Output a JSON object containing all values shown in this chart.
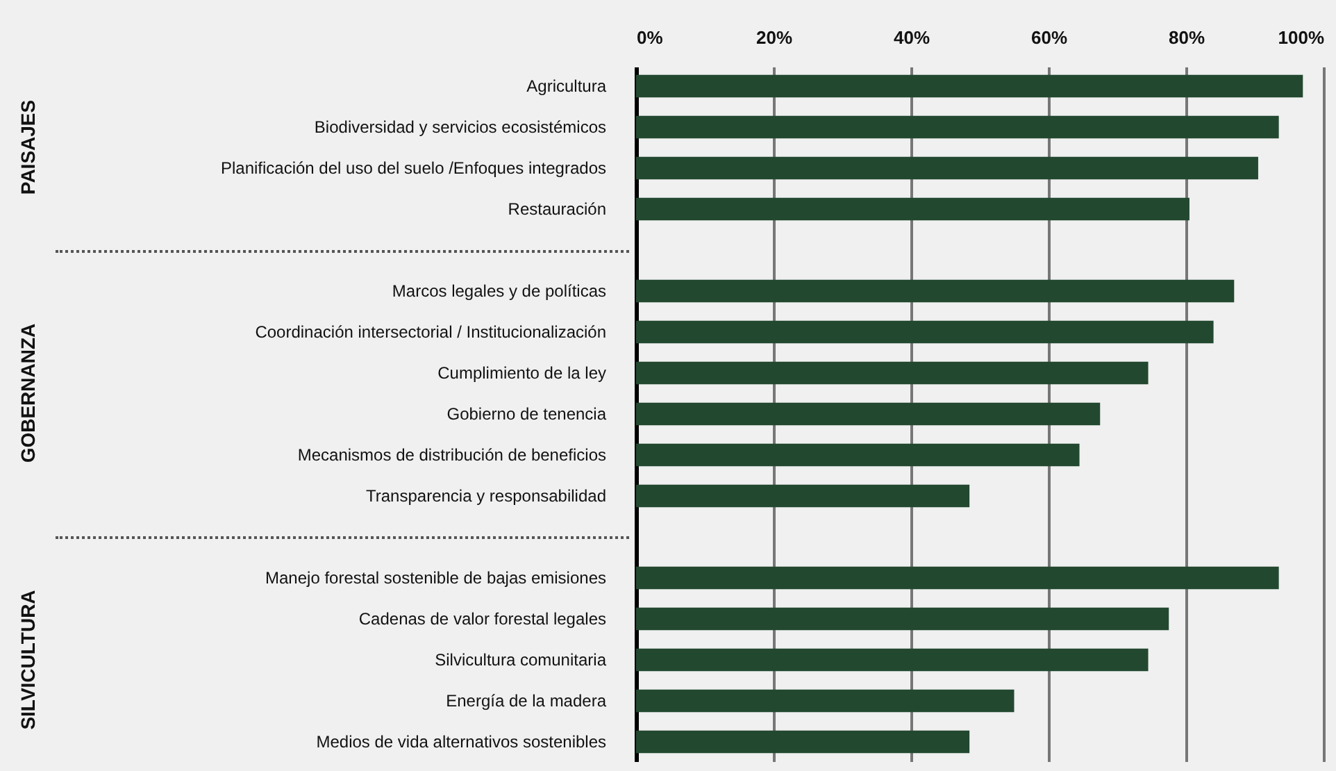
{
  "chart_data": {
    "type": "bar",
    "orientation": "horizontal",
    "categories": [
      "Agricultura",
      "Biodiversidad y servicios ecosistémicos",
      "Planificación del uso del suelo /Enfoques integrados",
      "Restauración",
      null,
      "Marcos legales y de políticas",
      "Coordinación intersectorial / Institucionalización",
      "Cumplimiento de la ley",
      "Gobierno de tenencia",
      "Mecanismos de distribución de beneficios",
      "Transparencia y responsabilidad",
      null,
      "Manejo forestal sostenible de bajas emisiones",
      "Cadenas de valor forestal legales",
      "Silvicultura comunitaria",
      "Energía de la madera",
      "Medios de vida alternativos sostenibles"
    ],
    "values": [
      97,
      93.5,
      90.5,
      80.5,
      null,
      87,
      84,
      74.5,
      67.5,
      64.5,
      48.5,
      null,
      93.5,
      77.5,
      74.5,
      55,
      48.5
    ],
    "color": "#234830",
    "xlim": [
      0,
      100
    ],
    "xticks": [
      {
        "value": 0,
        "label": "0%"
      },
      {
        "value": 20,
        "label": "20%"
      },
      {
        "value": 40,
        "label": "40%"
      },
      {
        "value": 60,
        "label": "60%"
      },
      {
        "value": 80,
        "label": "80%"
      },
      {
        "value": 100,
        "label": "100%"
      }
    ],
    "grid": "x",
    "annotations": [
      "PAISAJES",
      "GOBERNANZA",
      "SILVICULTURA"
    ]
  }
}
